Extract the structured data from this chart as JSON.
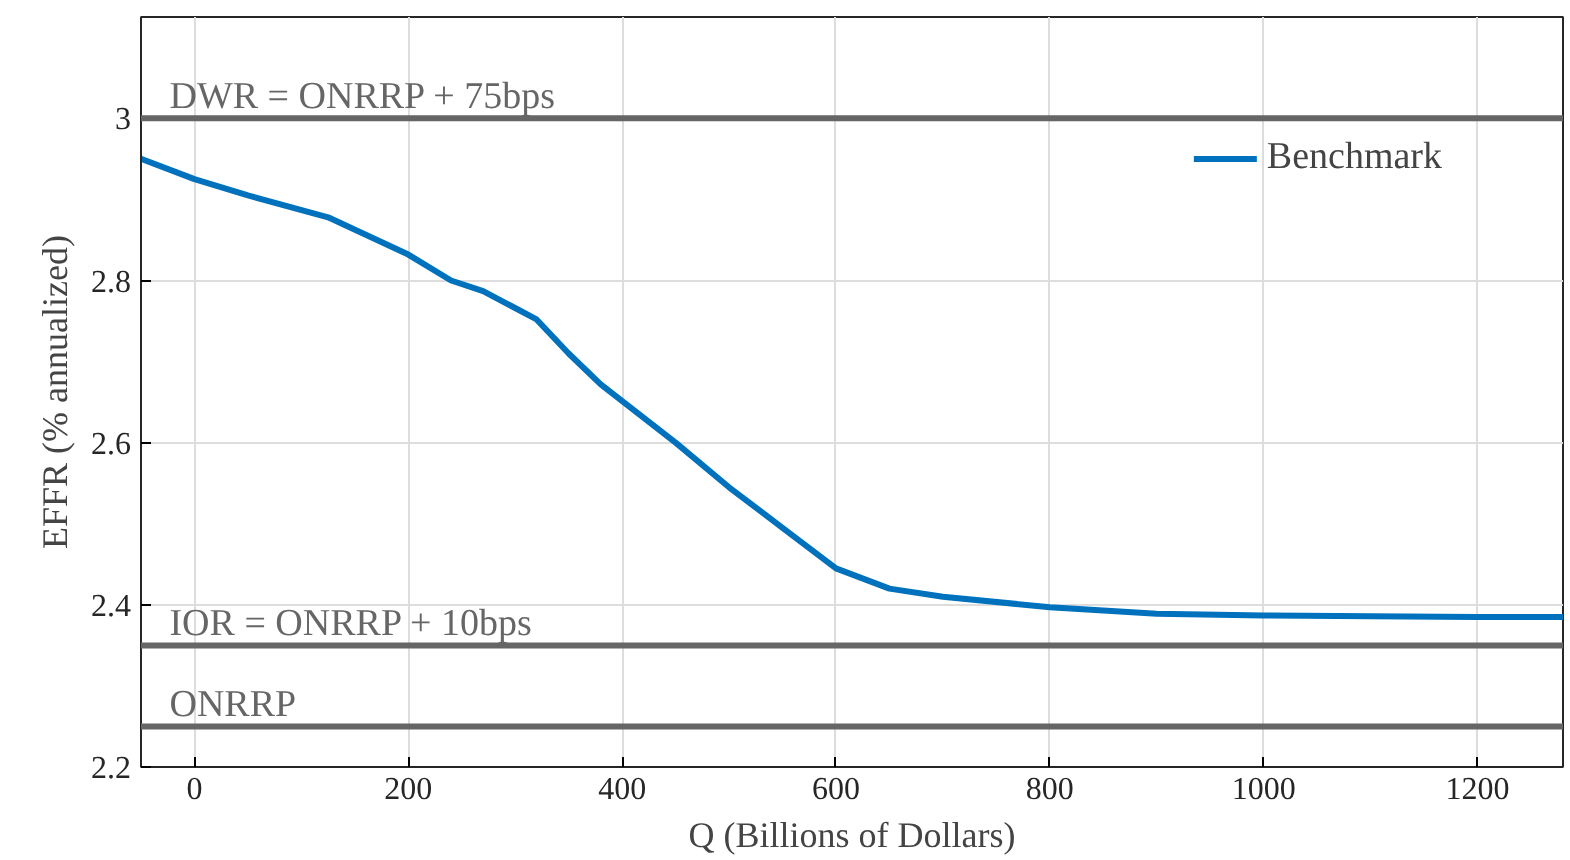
{
  "chart_data": {
    "type": "line",
    "xlabel": "Q (Billions of Dollars)",
    "ylabel": "EFFR (% annualized)",
    "x": [
      -50,
      0,
      50,
      125,
      200,
      240,
      270,
      320,
      350,
      380,
      450,
      500,
      550,
      600,
      650,
      700,
      800,
      900,
      1000,
      1100,
      1200,
      1280
    ],
    "series": [
      {
        "name": "Benchmark",
        "color": "#0072bd",
        "values": [
          2.95,
          2.925,
          2.905,
          2.878,
          2.832,
          2.8,
          2.787,
          2.752,
          2.71,
          2.672,
          2.6,
          2.545,
          2.495,
          2.445,
          2.42,
          2.41,
          2.397,
          2.389,
          2.387,
          2.386,
          2.385,
          2.385
        ]
      }
    ],
    "xlim": [
      -50,
      1280
    ],
    "ylim": [
      2.2,
      3.125
    ],
    "xticks": [
      0,
      200,
      400,
      600,
      800,
      1000,
      1200
    ],
    "yticks": [
      2.2,
      2.4,
      2.6,
      2.8,
      3
    ],
    "ref_lines": [
      {
        "axis": "y",
        "value": 3,
        "label": "DWR = ONRRP + 75bps",
        "color": "#666666"
      },
      {
        "axis": "y",
        "value": 2.35,
        "label": "IOR = ONRRP + 10bps",
        "color": "#666666"
      },
      {
        "axis": "y",
        "value": 2.25,
        "label": "ONRRP",
        "color": "#666666"
      }
    ],
    "grid": true,
    "legend": "top right",
    "line_style": "solid",
    "marker": "none"
  }
}
